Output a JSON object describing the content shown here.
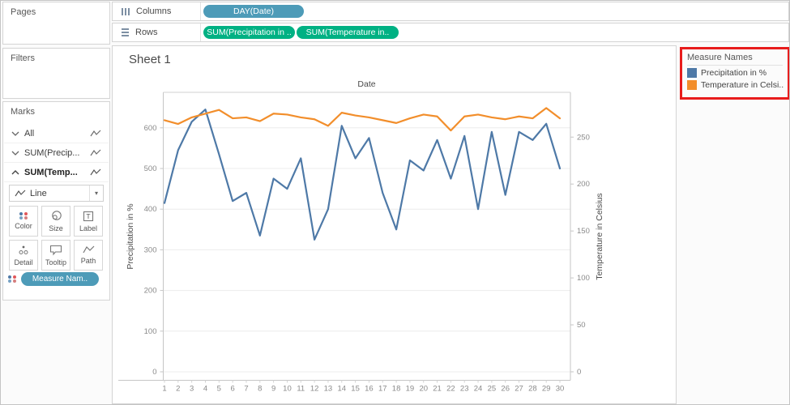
{
  "shelves": {
    "columns": {
      "label": "Columns",
      "pills": [
        {
          "text": "DAY(Date)",
          "type": "dimension"
        }
      ]
    },
    "rows": {
      "label": "Rows",
      "pills": [
        {
          "text": "SUM(Precipitation in ..",
          "type": "measure"
        },
        {
          "text": "SUM(Temperature in..",
          "type": "measure"
        }
      ]
    }
  },
  "panels": {
    "pages": {
      "title": "Pages"
    },
    "filters": {
      "title": "Filters"
    },
    "marks": {
      "title": "Marks",
      "cards": [
        {
          "label": "All",
          "chevron": "down"
        },
        {
          "label": "SUM(Precip...",
          "chevron": "down"
        },
        {
          "label": "SUM(Temp...",
          "chevron": "up"
        }
      ],
      "mark_type": "Line",
      "buttons": [
        "Color",
        "Size",
        "Label",
        "Detail",
        "Tooltip",
        "Path"
      ],
      "pill": "Measure Nam.."
    }
  },
  "sheet": {
    "title": "Sheet 1"
  },
  "legend": {
    "title": "Measure Names",
    "highlighted": true,
    "items": [
      {
        "label": "Precipitation in %",
        "color": "#4e79a7"
      },
      {
        "label": "Temperature in Celsi..",
        "color": "#f28e2b"
      }
    ]
  },
  "colors": {
    "dimension_pill": "#4d9bb8",
    "measure_pill": "#00b183",
    "line_blue": "#4e79a7",
    "line_orange": "#f28e2b",
    "legend_highlight_border": "#e81c1c",
    "mark_dot_colors": [
      "#4e79a7",
      "#e15759",
      "#76a2c4",
      "#d67e7e"
    ]
  },
  "chart_data": {
    "type": "line",
    "x_label": "Date",
    "x": [
      1,
      2,
      3,
      4,
      5,
      6,
      7,
      8,
      9,
      10,
      11,
      12,
      13,
      14,
      15,
      16,
      17,
      18,
      19,
      20,
      21,
      22,
      23,
      24,
      25,
      26,
      27,
      28,
      29,
      30
    ],
    "series": [
      {
        "name": "Precipitation in %",
        "axis": "left",
        "color": "#4e79a7",
        "values": [
          415,
          545,
          615,
          645,
          535,
          420,
          440,
          335,
          475,
          450,
          525,
          325,
          400,
          605,
          525,
          575,
          440,
          350,
          520,
          495,
          570,
          475,
          580,
          400,
          590,
          435,
          590,
          570,
          610,
          500
        ]
      },
      {
        "name": "Temperature in Celsius",
        "axis": "right",
        "color": "#f28e2b",
        "values": [
          268,
          264,
          271,
          275,
          279,
          270,
          271,
          267,
          275,
          274,
          271,
          269,
          262,
          276,
          273,
          271,
          268,
          265,
          270,
          274,
          272,
          257,
          272,
          274,
          271,
          269,
          272,
          270,
          281,
          270
        ]
      }
    ],
    "left_axis": {
      "title": "Precipitation in %",
      "ticks": [
        0,
        100,
        200,
        300,
        400,
        500,
        600
      ],
      "range": [
        0,
        690
      ]
    },
    "right_axis": {
      "title": "Temperature in Celsius",
      "ticks": [
        0,
        50,
        100,
        150,
        200,
        250
      ],
      "range": [
        0,
        300
      ]
    },
    "grid": "horizontal",
    "legend_position": "right"
  }
}
